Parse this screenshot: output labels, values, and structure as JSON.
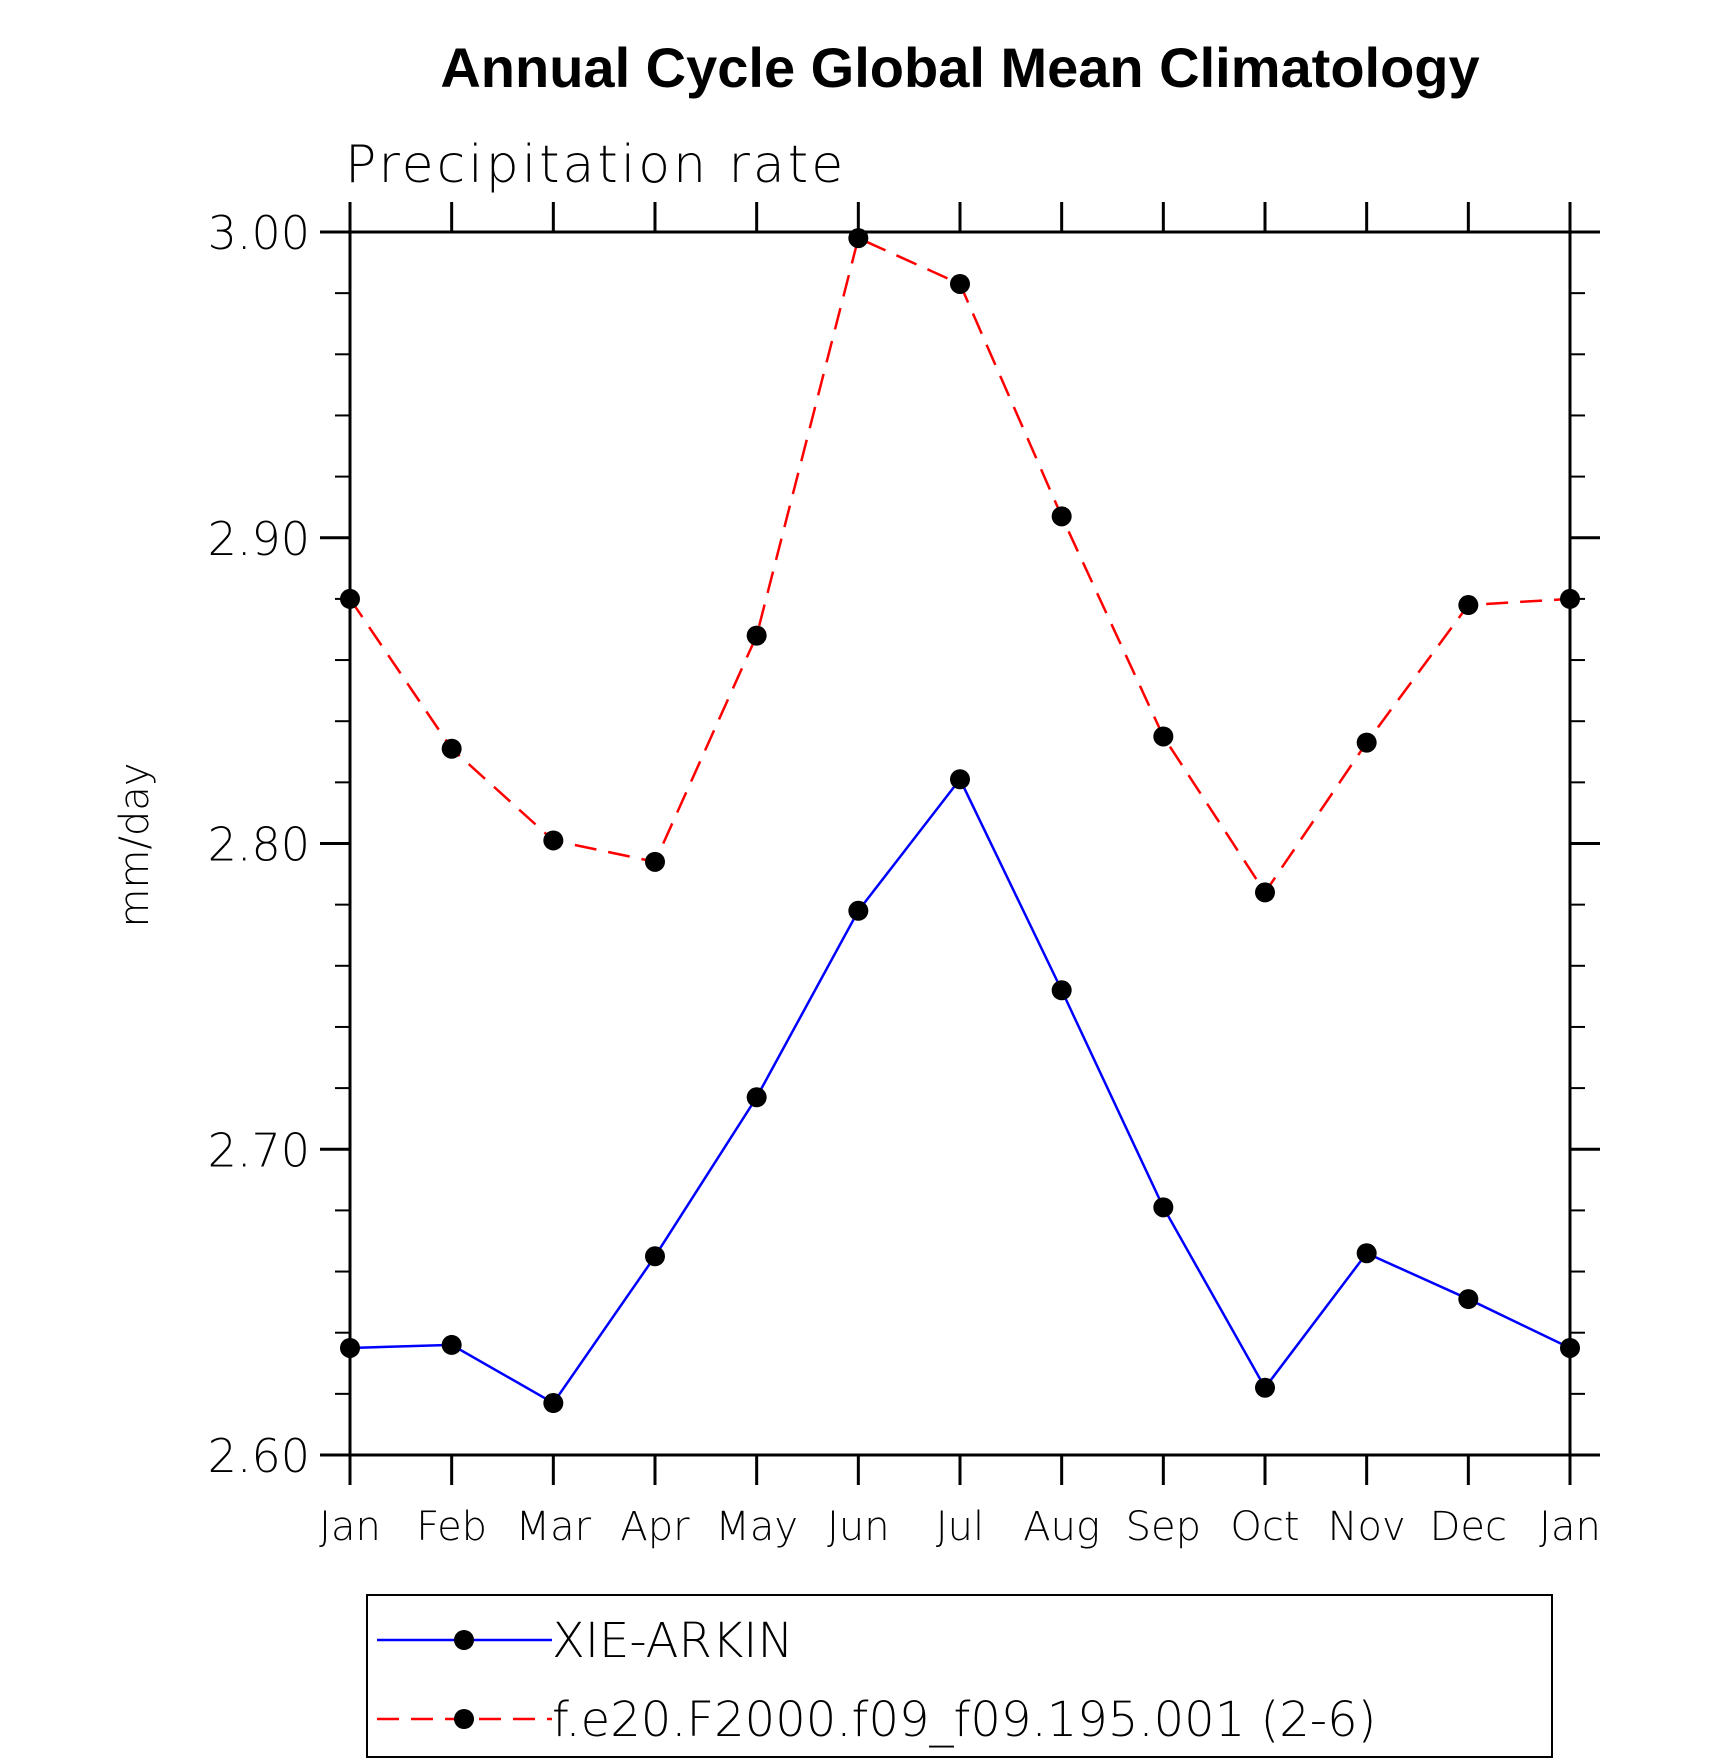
{
  "chart_data": {
    "type": "line",
    "title": "Annual Cycle Global Mean Climatology",
    "subtitle": "Precipitation rate",
    "ylabel": "mm/day",
    "xlabel": "",
    "categories": [
      "Jan",
      "Feb",
      "Mar",
      "Apr",
      "May",
      "Jun",
      "Jul",
      "Aug",
      "Sep",
      "Oct",
      "Nov",
      "Dec",
      "Jan"
    ],
    "ylim": [
      2.6,
      3.0
    ],
    "yticks": [
      "2.60",
      "2.70",
      "2.80",
      "2.90",
      "3.00"
    ],
    "ytick_values": [
      2.6,
      2.7,
      2.8,
      2.9,
      3.0
    ],
    "y_minor_step": 0.02,
    "grid": false,
    "legend_position": "bottom",
    "series": [
      {
        "name": "XIE-ARKIN",
        "color": "#0000ff",
        "dashed": false,
        "values": [
          2.635,
          2.636,
          2.617,
          2.665,
          2.717,
          2.778,
          2.821,
          2.752,
          2.681,
          2.622,
          2.666,
          2.651,
          2.635
        ]
      },
      {
        "name": "f.e20.F2000.f09_f09.195.001 (2-6)",
        "color": "#ff0000",
        "dashed": true,
        "values": [
          2.88,
          2.831,
          2.801,
          2.794,
          2.868,
          2.998,
          2.983,
          2.907,
          2.835,
          2.784,
          2.833,
          2.878,
          2.88
        ]
      }
    ],
    "marker_color": "#000000"
  }
}
